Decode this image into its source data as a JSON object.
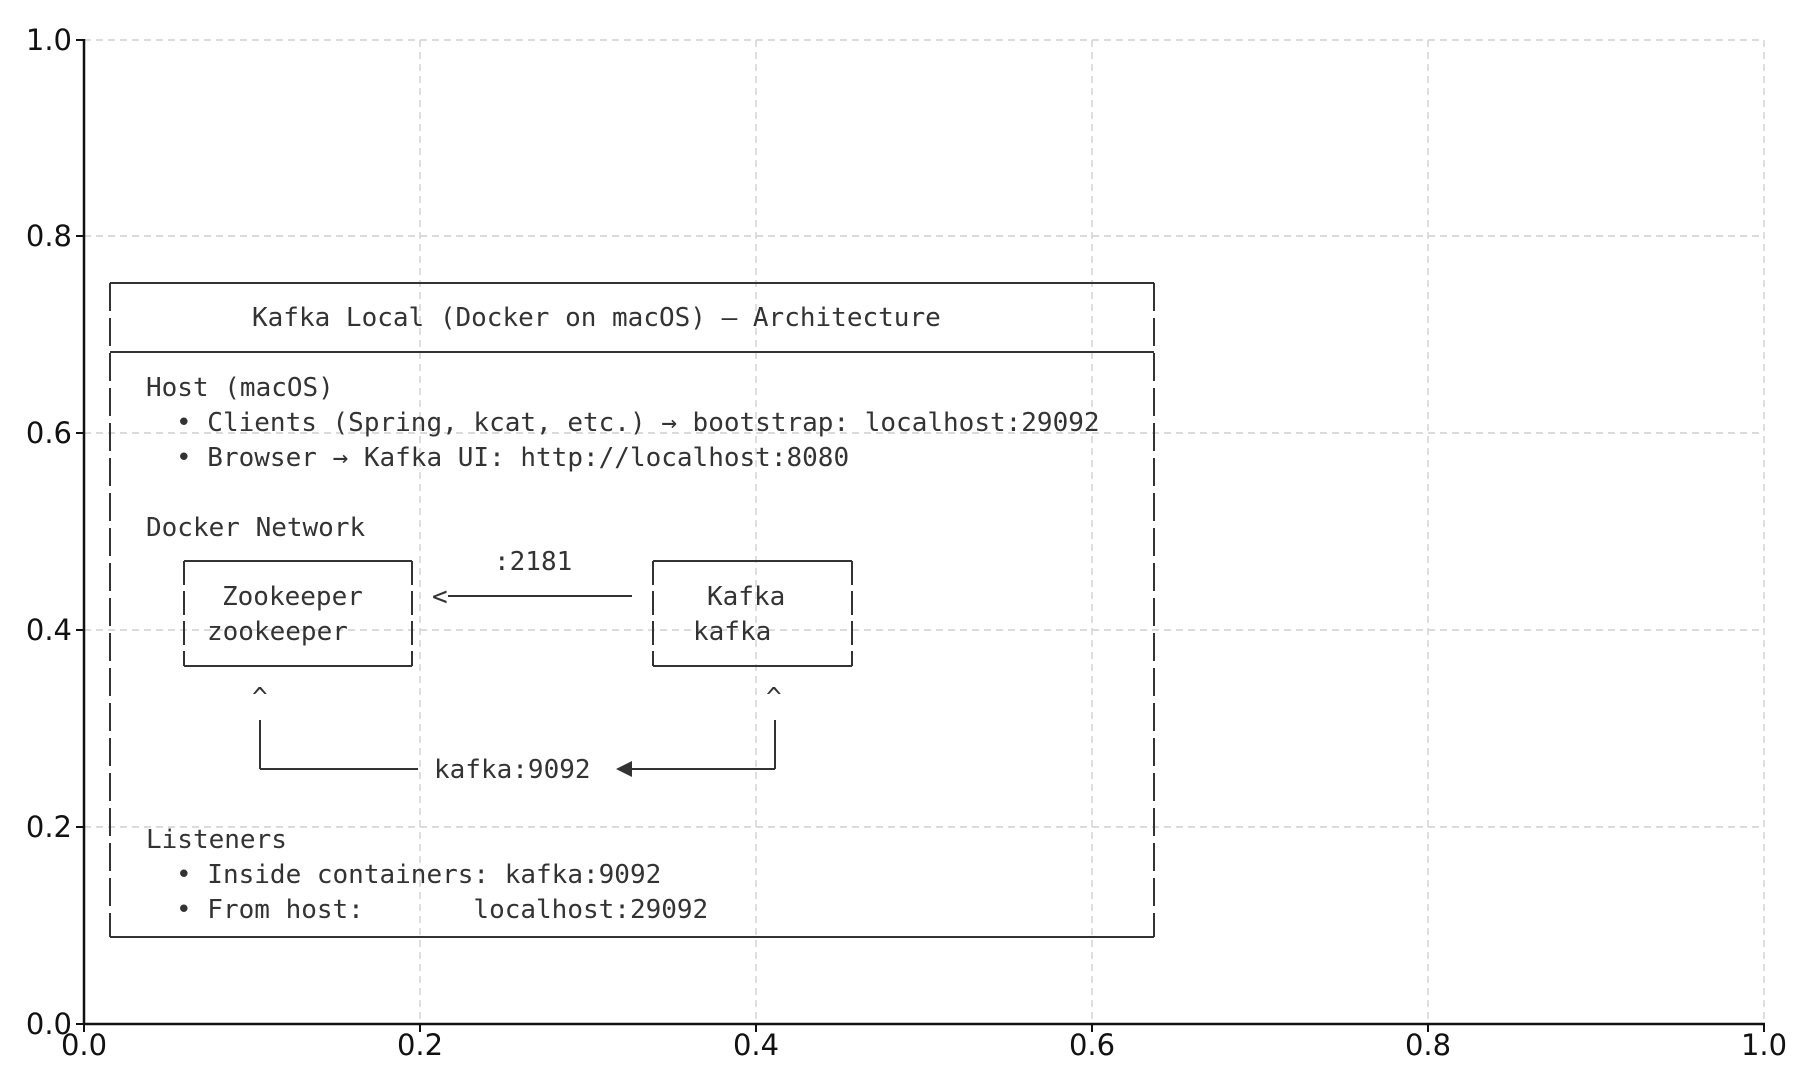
{
  "axes": {
    "xlim": [
      0,
      1
    ],
    "ylim": [
      0,
      1
    ],
    "grid": true,
    "grid_style": "dashed",
    "x_ticks": [
      "0.0",
      "0.2",
      "0.4",
      "0.6",
      "0.8",
      "1.0"
    ],
    "y_ticks": [
      "0.0",
      "0.2",
      "0.4",
      "0.6",
      "0.8",
      "1.0"
    ]
  },
  "colors": {
    "ink": "#333333",
    "axis": "#111111",
    "grid": "#cfcfcf"
  },
  "diagram": {
    "title": "Kafka Local (Docker on macOS) — Architecture",
    "host": {
      "heading": "Host (macOS)",
      "bullets": [
        "• Clients (Spring, kcat, etc.) → bootstrap: localhost:29092",
        "• Browser → Kafka UI: http://localhost:8080"
      ]
    },
    "docker_network": {
      "heading": "Docker Network",
      "zookeeper": {
        "label": "Zookeeper",
        "hostname": "zookeeper"
      },
      "kafka": {
        "label": "Kafka",
        "hostname": "kafka"
      },
      "link_zk_port": ":2181",
      "arrow_head_left": "<",
      "caret_left": "^",
      "caret_right": "^",
      "internal_link": "kafka:9092"
    },
    "listeners": {
      "heading": "Listeners",
      "bullets": [
        "• Inside containers: kafka:9092",
        "• From host:       localhost:29092"
      ]
    }
  }
}
